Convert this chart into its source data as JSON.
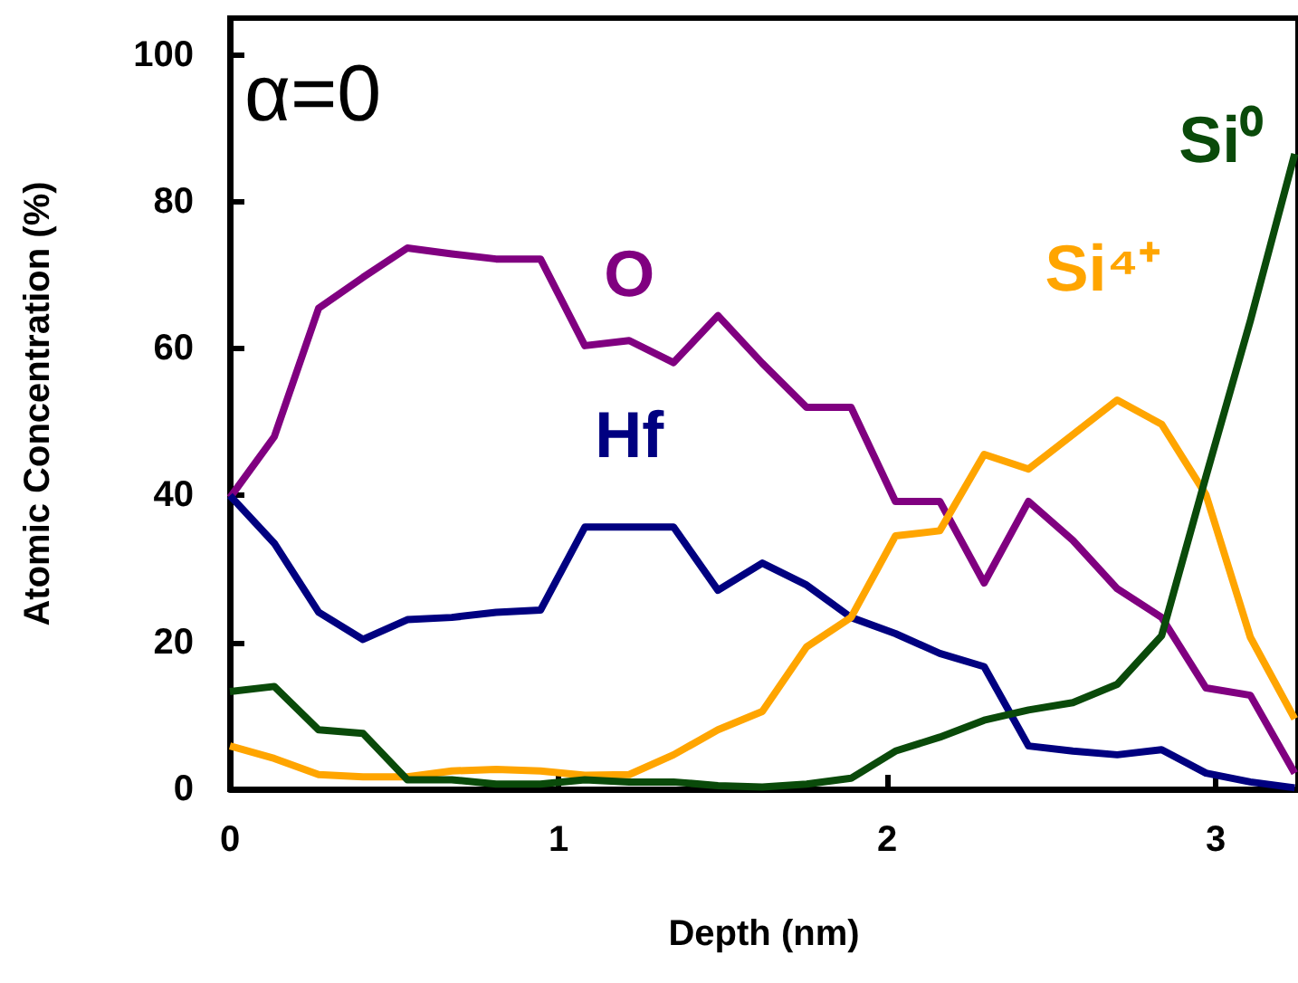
{
  "chart_data": {
    "type": "line",
    "xlabel": "Depth (nm)",
    "ylabel": "Atomic Concentration (%)",
    "annotations": [
      "α=0"
    ],
    "x": [
      0,
      0.135,
      0.27,
      0.405,
      0.54,
      0.675,
      0.81,
      0.945,
      1.08,
      1.215,
      1.35,
      1.485,
      1.62,
      1.755,
      1.89,
      2.025,
      2.16,
      2.295,
      2.43,
      2.565,
      2.7,
      2.835,
      2.97,
      3.105,
      3.24
    ],
    "xlim": [
      0,
      3.25
    ],
    "xticks": [
      0,
      1,
      2,
      3
    ],
    "ylim": [
      0,
      105
    ],
    "yticks": [
      0,
      20,
      40,
      60,
      80,
      100
    ],
    "grid": false,
    "legend": false,
    "marker": "none",
    "line_style": "solid",
    "series": [
      {
        "name": "O",
        "color": "#800080",
        "values": [
          39.7,
          48,
          65.5,
          69.7,
          73.7,
          72.9,
          72.2,
          72.2,
          60.4,
          61.1,
          58.1,
          64.5,
          58,
          52,
          52,
          39.2,
          39.2,
          28.1,
          39.2,
          33.9,
          27.3,
          23.4,
          13.8,
          12.8,
          2.2
        ]
      },
      {
        "name": "Hf",
        "color": "#000080",
        "values": [
          40,
          33.5,
          24.1,
          20.4,
          23.1,
          23.4,
          24.1,
          24.4,
          35.7,
          35.7,
          35.7,
          27.1,
          30.8,
          27.8,
          23.4,
          21.2,
          18.5,
          16.7,
          5.9,
          5.2,
          4.7,
          5.4,
          2.2,
          1,
          0.2
        ]
      },
      {
        "name": "Si⁴⁺",
        "color": "#ffa500",
        "values": [
          5.9,
          4.2,
          2,
          1.7,
          1.7,
          2.5,
          2.7,
          2.5,
          1.9,
          2,
          4.7,
          8.1,
          10.6,
          19.4,
          23.4,
          34.5,
          35.2,
          45.6,
          43.6,
          48.3,
          53,
          49.7,
          40.1,
          20.7,
          9.6
        ]
      },
      {
        "name": "Si⁰",
        "color": "#0a4a0a",
        "values": [
          13.3,
          14,
          8.1,
          7.6,
          1.3,
          1.3,
          0.7,
          0.7,
          1.3,
          1,
          1,
          0.5,
          0.3,
          0.7,
          1.5,
          5.2,
          7.1,
          9.4,
          10.8,
          11.8,
          14.3,
          20.9,
          42.6,
          63.8,
          86.5
        ]
      }
    ]
  }
}
